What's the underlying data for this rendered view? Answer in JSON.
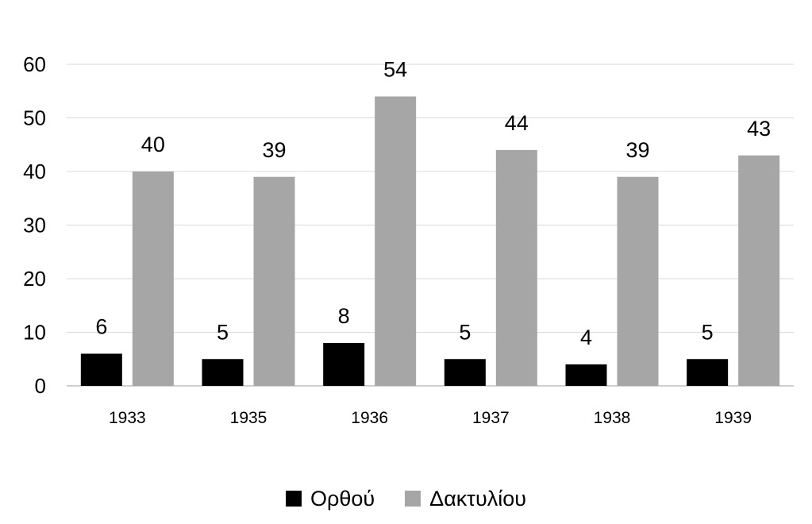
{
  "chart_data": {
    "type": "bar",
    "categories": [
      "1933",
      "1935",
      "1936",
      "1937",
      "1938",
      "1939"
    ],
    "series": [
      {
        "name": "Ορθού",
        "values": [
          6,
          5,
          8,
          5,
          4,
          5
        ],
        "color": "#000000"
      },
      {
        "name": "Δακτυλίου",
        "values": [
          40,
          39,
          54,
          44,
          39,
          43
        ],
        "color": "#a6a6a6"
      }
    ],
    "ylim": [
      0,
      60
    ],
    "yticks": [
      0,
      10,
      20,
      30,
      40,
      50,
      60
    ],
    "grid": true,
    "data_labels": true,
    "legend_position": "bottom",
    "gridline_color": "#d9d9d9",
    "axis_color": "#bfbfbf"
  }
}
